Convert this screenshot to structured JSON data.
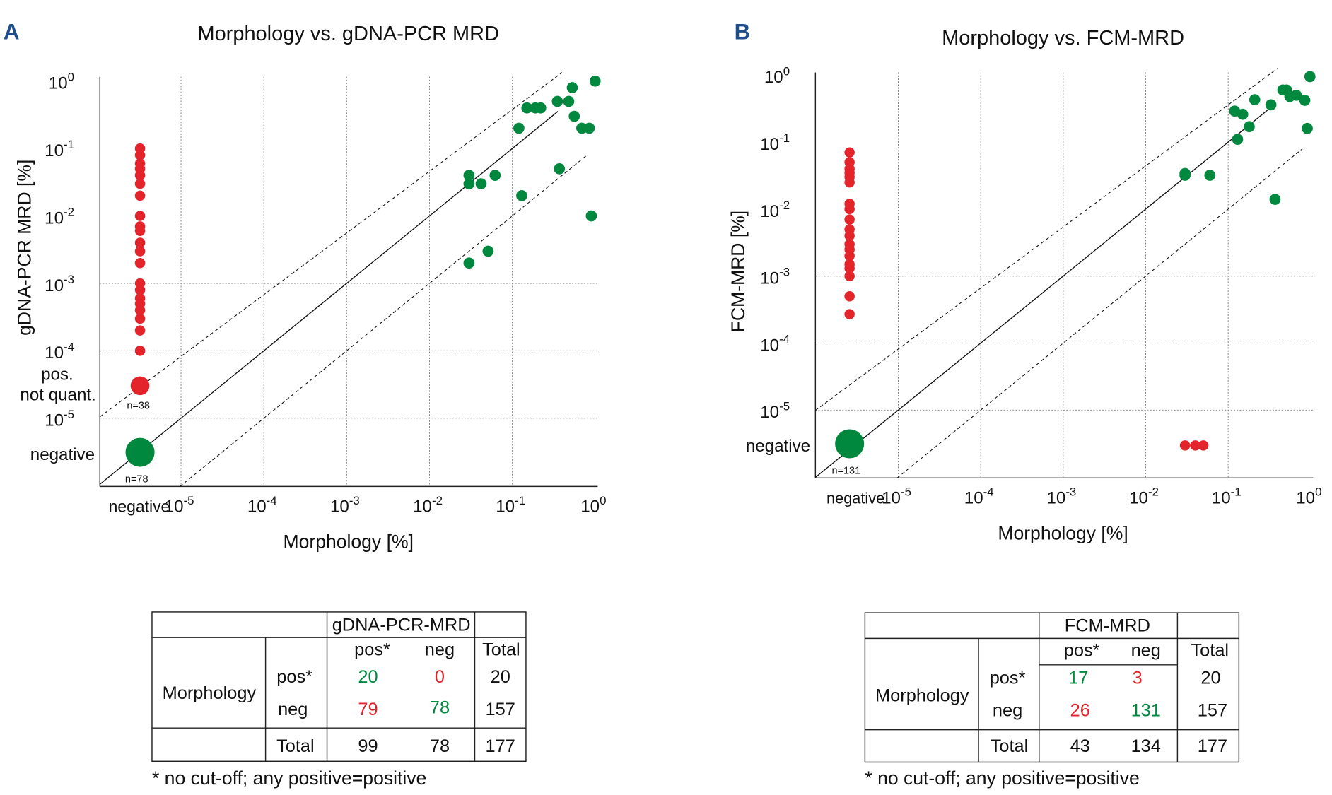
{
  "colors": {
    "positive": "#00893e",
    "negative_red": "#e3242b",
    "panel_letter": "#1f4e8c"
  },
  "chart_data": [
    {
      "type": "scatter",
      "panel": "A",
      "title": "Morphology vs. gDNA-PCR MRD",
      "xlabel": "Morphology [%]",
      "ylabel": "gDNA-PCR MRD [%]",
      "xscale": "log",
      "yscale": "log",
      "xlim": [
        1e-05,
        1
      ],
      "ylim": [
        1e-05,
        1
      ],
      "x_ticks": [
        {
          "exp": "-5"
        },
        {
          "exp": "-4"
        },
        {
          "exp": "-3"
        },
        {
          "exp": "-2"
        },
        {
          "exp": "-1"
        },
        {
          "exp": "0"
        }
      ],
      "y_ticks": [
        {
          "exp": "0"
        },
        {
          "exp": "-1"
        },
        {
          "exp": "-2"
        },
        {
          "exp": "-3"
        },
        {
          "exp": "-4"
        },
        {
          "exp": "-5"
        }
      ],
      "tick_base": "10",
      "x_negative_label": "negative",
      "y_negative_label": "negative",
      "y_pos_not_quant_label": [
        "pos.",
        "not quant."
      ],
      "n_pos_not_quant": "n=38",
      "n_negative": "n=78",
      "grid": "dotted",
      "reference_lines": [
        "y=x (solid)",
        "y=10x (dashed)",
        "y=x/10 (dashed)"
      ],
      "green_points": [
        [
          0.03,
          0.04
        ],
        [
          0.03,
          0.03
        ],
        [
          0.042,
          0.03
        ],
        [
          0.062,
          0.04
        ],
        [
          0.13,
          0.02
        ],
        [
          0.03,
          0.002
        ],
        [
          0.051,
          0.003
        ],
        [
          0.12,
          0.2
        ],
        [
          0.15,
          0.4
        ],
        [
          0.19,
          0.4
        ],
        [
          0.22,
          0.4
        ],
        [
          0.35,
          0.5
        ],
        [
          0.48,
          0.5
        ],
        [
          0.53,
          0.8
        ],
        [
          0.56,
          0.3
        ],
        [
          0.37,
          0.05
        ],
        [
          0.69,
          0.2
        ],
        [
          0.85,
          0.2
        ],
        [
          0.9,
          0.01
        ],
        [
          1,
          1
        ]
      ],
      "red_points_morph_negative": [
        0.1,
        0.08,
        0.06,
        0.05,
        0.04,
        0.03,
        0.02,
        0.01,
        0.007,
        0.006,
        0.004,
        0.003,
        0.002,
        0.001,
        0.0008,
        0.0006,
        0.0005,
        0.0004,
        0.0003,
        0.0002,
        0.0001
      ],
      "red_points_x_pos_y_negative": []
    },
    {
      "type": "scatter",
      "panel": "B",
      "title": "Morphology vs. FCM-MRD",
      "xlabel": "Morphology [%]",
      "ylabel": "FCM-MRD [%]",
      "xscale": "log",
      "yscale": "log",
      "xlim": [
        1e-05,
        1
      ],
      "ylim": [
        1e-05,
        1
      ],
      "x_ticks": [
        {
          "exp": "-5"
        },
        {
          "exp": "-4"
        },
        {
          "exp": "-3"
        },
        {
          "exp": "-2"
        },
        {
          "exp": "-1"
        },
        {
          "exp": "0"
        }
      ],
      "y_ticks": [
        {
          "exp": "0"
        },
        {
          "exp": "-1"
        },
        {
          "exp": "-2"
        },
        {
          "exp": "-3"
        },
        {
          "exp": "-4"
        },
        {
          "exp": "-5"
        }
      ],
      "tick_base": "10",
      "x_negative_label": "negative",
      "y_negative_label": "negative",
      "n_negative": "n=131",
      "grid": "dotted",
      "reference_lines": [
        "y=x (solid)",
        "y=10x (dashed)",
        "y=x/10 (dashed)"
      ],
      "green_points": [
        [
          0.03,
          0.032
        ],
        [
          0.03,
          0.034
        ],
        [
          0.06,
          0.032
        ],
        [
          0.37,
          0.014
        ],
        [
          0.12,
          0.29
        ],
        [
          0.15,
          0.26
        ],
        [
          0.13,
          0.11
        ],
        [
          0.18,
          0.17
        ],
        [
          0.21,
          0.43
        ],
        [
          0.33,
          0.36
        ],
        [
          0.46,
          0.6
        ],
        [
          0.51,
          0.6
        ],
        [
          0.56,
          0.48
        ],
        [
          0.67,
          0.5
        ],
        [
          0.85,
          0.42
        ],
        [
          0.91,
          0.16
        ],
        [
          0.98,
          0.95
        ]
      ],
      "red_points_morph_negative": [
        0.07,
        0.05,
        0.04,
        0.035,
        0.03,
        0.025,
        0.012,
        0.01,
        0.007,
        0.005,
        0.004,
        0.003,
        0.0025,
        0.002,
        0.0015,
        0.0013,
        0.001,
        0.0005,
        0.00027
      ],
      "red_points_x_pos_y_negative": [
        0.03,
        0.04,
        0.05
      ]
    }
  ],
  "tables": [
    {
      "group_header": "gDNA-PCR-MRD",
      "row_group": "Morphology",
      "col_headers": [
        "pos*",
        "neg",
        "Total"
      ],
      "rows": [
        {
          "label": "pos*",
          "pos": "20",
          "neg": "0",
          "total": "20"
        },
        {
          "label": "neg",
          "pos": "79",
          "neg": "78",
          "total": "157"
        }
      ],
      "total_row": {
        "label": "Total",
        "pos": "99",
        "neg": "78",
        "total": "177"
      },
      "footnote": "* no cut-off; any positive=positive"
    },
    {
      "group_header": "FCM-MRD",
      "row_group": "Morphology",
      "col_headers": [
        "pos*",
        "neg",
        "Total"
      ],
      "rows": [
        {
          "label": "pos*",
          "pos": "17",
          "neg": "3",
          "total": "20"
        },
        {
          "label": "neg",
          "pos": "26",
          "neg": "131",
          "total": "157"
        }
      ],
      "total_row": {
        "label": "Total",
        "pos": "43",
        "neg": "134",
        "total": "177"
      },
      "footnote": "* no cut-off; any positive=positive"
    }
  ]
}
